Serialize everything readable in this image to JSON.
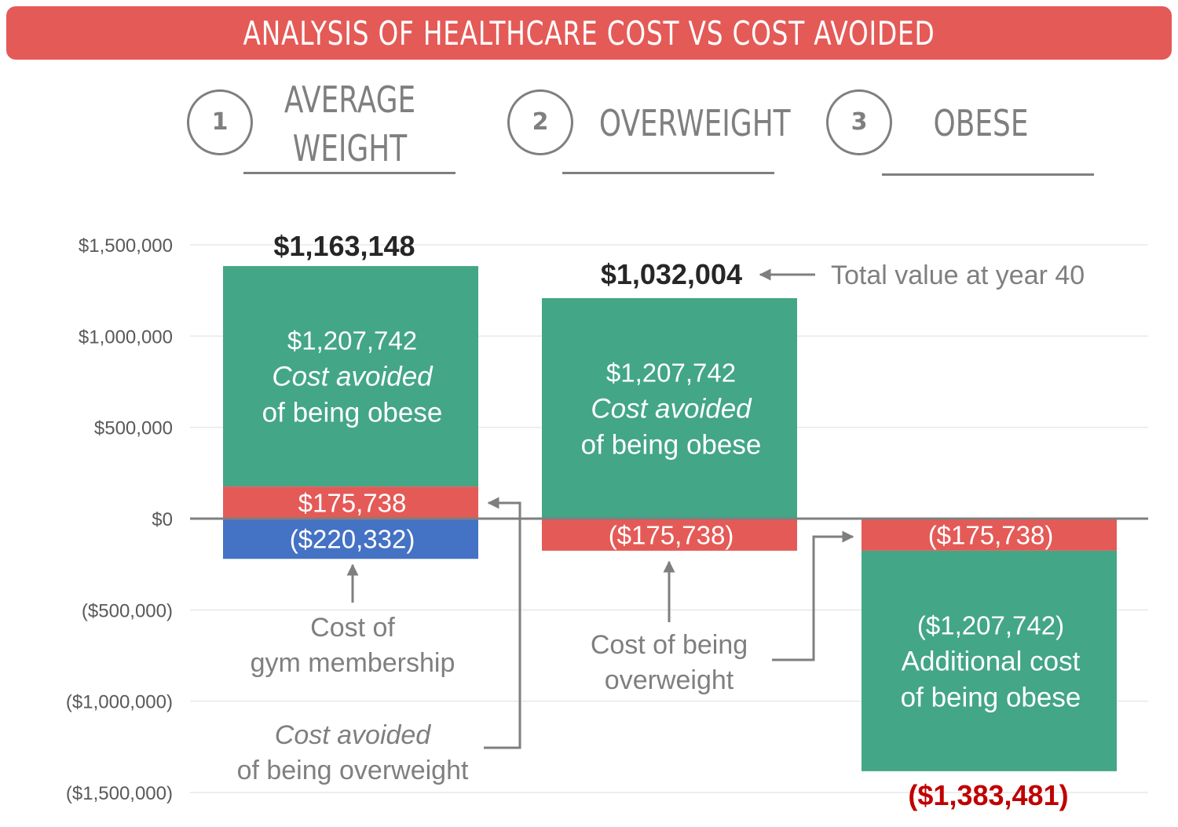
{
  "title": "ANALYSIS OF HEALTHCARE COST VS COST AVOIDED",
  "scenarios": [
    {
      "number": "1",
      "label_lines": [
        "AVERAGE",
        "WEIGHT"
      ]
    },
    {
      "number": "2",
      "label_lines": [
        "OVERWEIGHT"
      ]
    },
    {
      "number": "3",
      "label_lines": [
        "OBESE"
      ]
    }
  ],
  "colors": {
    "green": "#43a686",
    "red": "#e45a57",
    "blue": "#4472c4",
    "banner": "#e45a57",
    "grey": "#7f7f7f",
    "dark_red": "#c00000"
  },
  "chart_data": {
    "type": "bar",
    "stacked": true,
    "title": "ANALYSIS OF HEALTHCARE COST VS COST AVOIDED",
    "ylim": [
      -1500000,
      1500000
    ],
    "yticks": [
      1500000,
      1000000,
      500000,
      0,
      -500000,
      -1000000,
      -1500000
    ],
    "ytick_labels": [
      "$1,500,000",
      "$1,000,000",
      "$500,000",
      "$0",
      "($500,000)",
      "($1,000,000)",
      "($1,500,000)"
    ],
    "grid": true,
    "categories": [
      "AVERAGE WEIGHT",
      "OVERWEIGHT",
      "OBESE"
    ],
    "segments": [
      {
        "category": 0,
        "base": 175738,
        "value": 1207742,
        "color": "green",
        "value_label": "$1,207,742",
        "desc_lines": [
          "Cost avoided",
          "of being obese"
        ],
        "desc_italic": [
          true,
          false
        ]
      },
      {
        "category": 0,
        "base": 0,
        "value": 175738,
        "color": "red",
        "value_label": "$175,738",
        "desc_lines": [],
        "desc_italic": []
      },
      {
        "category": 0,
        "base": 0,
        "value": -220332,
        "color": "blue",
        "value_label": "($220,332)",
        "desc_lines": [],
        "desc_italic": []
      },
      {
        "category": 1,
        "base": 0,
        "value": 1207742,
        "color": "green",
        "value_label": "$1,207,742",
        "desc_lines": [
          "Cost avoided",
          "of being obese"
        ],
        "desc_italic": [
          true,
          false
        ]
      },
      {
        "category": 1,
        "base": 0,
        "value": -175738,
        "color": "red",
        "value_label": "($175,738)",
        "desc_lines": [],
        "desc_italic": []
      },
      {
        "category": 2,
        "base": 0,
        "value": -175738,
        "color": "red",
        "value_label": "($175,738)",
        "desc_lines": [],
        "desc_italic": []
      },
      {
        "category": 2,
        "base": -175738,
        "value": -1207742,
        "color": "green",
        "value_label": "($1,207,742)",
        "desc_lines": [
          "Additional cost",
          "of being obese"
        ],
        "desc_italic": [
          false,
          false
        ]
      }
    ],
    "totals": [
      {
        "category": 0,
        "label": "$1,163,148"
      },
      {
        "category": 1,
        "label": "$1,032,004"
      },
      {
        "category": 2,
        "label": "($1,383,481)"
      }
    ],
    "annotations": {
      "total_value": "Total value at year 40",
      "gym": [
        "Cost of",
        "gym membership"
      ],
      "avoided_overweight": [
        "Cost avoided",
        "of being overweight"
      ],
      "overweight_cost": [
        "Cost of being",
        "overweight"
      ]
    }
  }
}
